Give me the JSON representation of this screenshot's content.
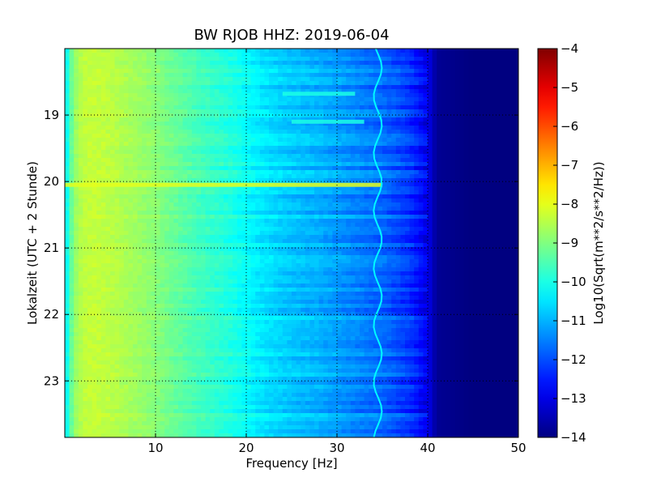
{
  "chart_data": {
    "type": "heatmap",
    "title": "BW RJOB HHZ: 2019-06-04",
    "xlabel": "Frequency [Hz]",
    "ylabel": "Lokalzeit (UTC + 2 Stunde)",
    "xlim": [
      0,
      50
    ],
    "ylim": [
      23.85,
      18.0
    ],
    "x_ticks": [
      10,
      20,
      30,
      40,
      50
    ],
    "y_ticks": [
      19,
      20,
      21,
      22,
      23
    ],
    "grid": true,
    "colormap": "jet",
    "colorbar": {
      "label": "Log10(Sqrt(m**2/s**2/Hz))",
      "range": [
        -14,
        -4
      ],
      "ticks": [
        -4,
        -5,
        -6,
        -7,
        -8,
        -9,
        -10,
        -11,
        -12,
        -13,
        -14
      ]
    },
    "spectral_profile": {
      "frequency_hz": [
        0,
        1,
        2,
        3,
        5,
        8,
        10,
        12,
        15,
        18,
        20,
        22,
        25,
        28,
        30,
        32,
        35,
        38,
        40,
        41,
        45,
        50
      ],
      "log10_amplitude": [
        -10.5,
        -8.8,
        -8.4,
        -8.3,
        -8.4,
        -8.7,
        -8.9,
        -9.2,
        -9.6,
        -9.9,
        -10.2,
        -10.5,
        -10.8,
        -11.0,
        -11.2,
        -11.4,
        -11.7,
        -12.2,
        -12.9,
        -13.8,
        -14.0,
        -14.0
      ]
    },
    "features": [
      {
        "name": "strong broadband band",
        "time": 20.05,
        "freq_range": [
          0,
          35
        ],
        "log10_amplitude": -8.0
      },
      {
        "name": "spectral line",
        "time": 18.68,
        "freq_range": [
          24,
          32
        ],
        "log10_amplitude": -10.0
      },
      {
        "name": "spectral line",
        "time": 19.1,
        "freq_range": [
          25,
          33
        ],
        "log10_amplitude": -10.0
      },
      {
        "name": "wandering tonal line",
        "freq_hz": 34.5,
        "time_range": [
          18.0,
          23.85
        ]
      }
    ]
  }
}
